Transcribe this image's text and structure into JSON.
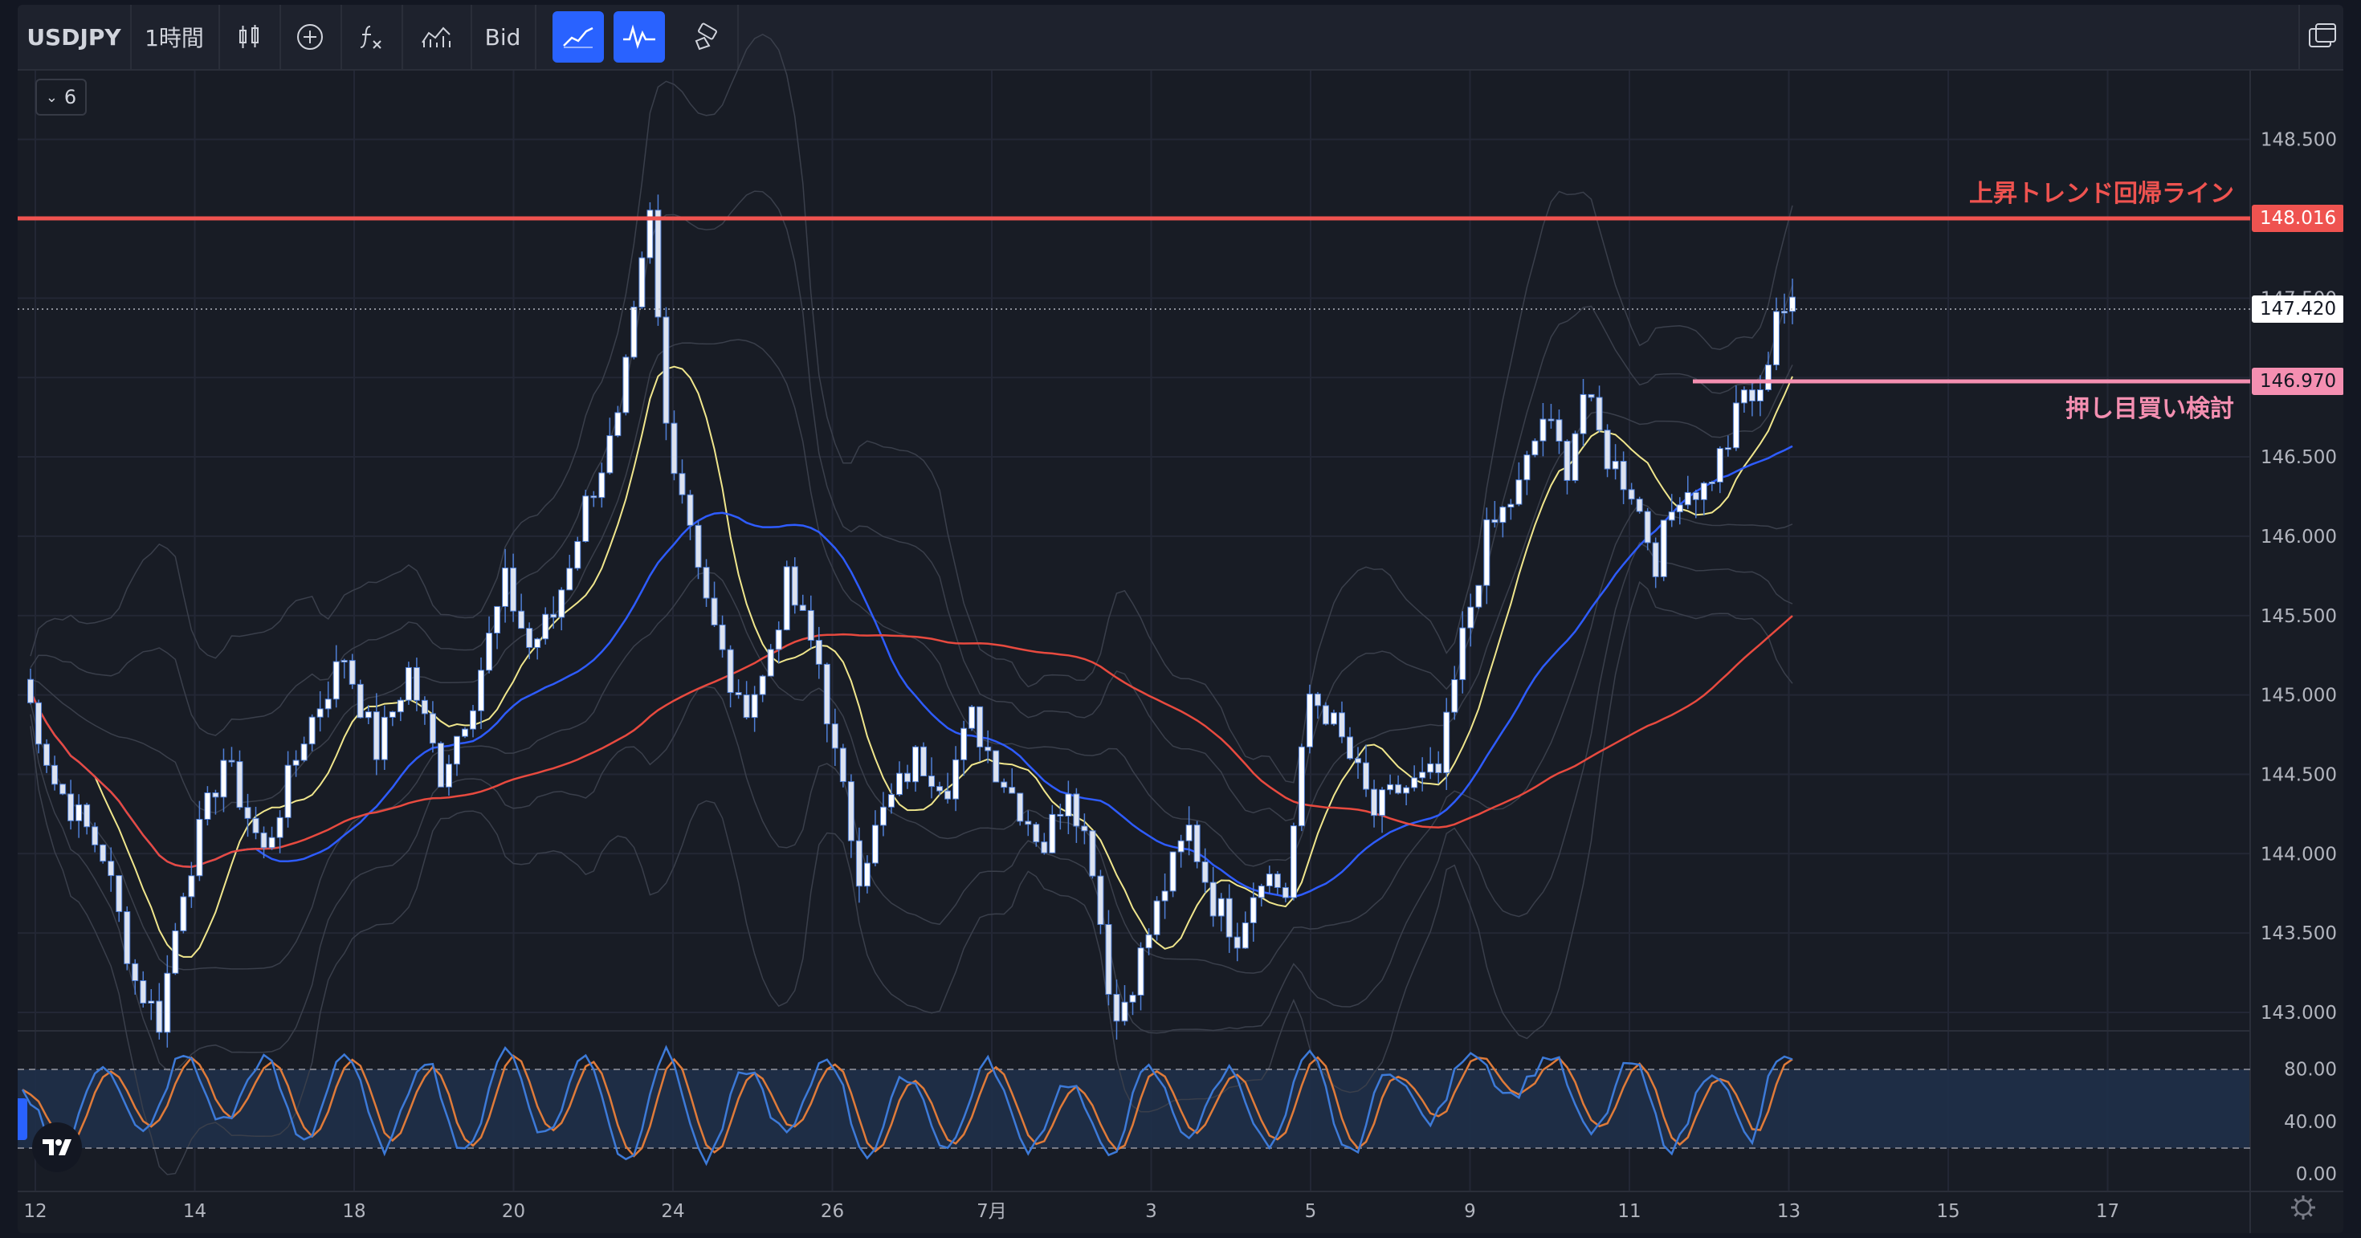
{
  "toolbar": {
    "symbol": "USDJPY",
    "interval": "1時間",
    "price_type": "Bid",
    "icons": [
      "candles-icon",
      "add-compare-icon",
      "indicators-fx-icon",
      "indicator-templates-icon",
      "trend-line-icon",
      "oscillator-icon",
      "brush-icon",
      "layout-icon"
    ]
  },
  "collapse": {
    "count": "6"
  },
  "colors": {
    "bg": "#181c25",
    "candle": "#ffffff",
    "candle_edge": "#4f7fd6",
    "ma_short": "#f0e68c",
    "ma_mid": "#2e5cff",
    "ma_long": "#e84a3f",
    "resistance": "#ef5350",
    "support": "#f48fb1",
    "stoch_k": "#3d7ad8",
    "stoch_d": "#e07b39"
  },
  "annotations": {
    "resistance_label": "上昇トレンド回帰ライン",
    "support_label": "押し目買い検討"
  },
  "price_tags": {
    "resistance": "148.016",
    "current": "147.420",
    "support": "146.970"
  },
  "chart_data": {
    "type": "candlestick",
    "symbol": "USDJPY",
    "interval": "1時間",
    "y_axis": {
      "range": [
        142.9,
        148.75
      ],
      "ticks": [
        "148.500",
        "148.000",
        "147.500",
        "147.000",
        "146.500",
        "146.000",
        "145.500",
        "145.000",
        "144.500",
        "144.000",
        "143.500",
        "143.000"
      ]
    },
    "x_axis": {
      "ticks": [
        "12",
        "14",
        "18",
        "20",
        "24",
        "26",
        "7月",
        "3",
        "5",
        "9",
        "11",
        "13",
        "15",
        "17"
      ]
    },
    "close_path": [
      [
        0,
        145.1
      ],
      [
        4,
        144.45
      ],
      [
        10,
        144.0
      ],
      [
        14,
        143.2
      ],
      [
        17,
        142.95
      ],
      [
        20,
        143.8
      ],
      [
        25,
        144.6
      ],
      [
        30,
        144.0
      ],
      [
        35,
        144.75
      ],
      [
        40,
        145.25
      ],
      [
        44,
        144.65
      ],
      [
        48,
        145.15
      ],
      [
        52,
        144.5
      ],
      [
        56,
        145.0
      ],
      [
        60,
        145.7
      ],
      [
        63,
        145.3
      ],
      [
        66,
        145.5
      ],
      [
        70,
        146.2
      ],
      [
        74,
        146.7
      ],
      [
        78,
        148.0
      ],
      [
        80,
        146.7
      ],
      [
        83,
        146.1
      ],
      [
        86,
        145.4
      ],
      [
        89,
        144.9
      ],
      [
        92,
        145.1
      ],
      [
        95,
        145.7
      ],
      [
        99,
        145.2
      ],
      [
        101,
        144.6
      ],
      [
        104,
        143.9
      ],
      [
        107,
        144.25
      ],
      [
        111,
        144.6
      ],
      [
        115,
        144.45
      ],
      [
        118,
        144.85
      ],
      [
        121,
        144.55
      ],
      [
        124,
        144.3
      ],
      [
        127,
        144.05
      ],
      [
        130,
        144.45
      ],
      [
        133,
        143.95
      ],
      [
        135,
        143.2
      ],
      [
        136,
        142.95
      ],
      [
        139,
        143.35
      ],
      [
        142,
        143.8
      ],
      [
        145,
        144.15
      ],
      [
        148,
        143.7
      ],
      [
        151,
        143.5
      ],
      [
        154,
        143.9
      ],
      [
        157,
        143.75
      ],
      [
        160,
        145.0
      ],
      [
        162,
        144.9
      ],
      [
        165,
        144.6
      ],
      [
        168,
        144.25
      ],
      [
        171,
        144.4
      ],
      [
        174,
        144.45
      ],
      [
        176,
        144.5
      ],
      [
        179,
        145.35
      ],
      [
        182,
        146.0
      ],
      [
        186,
        146.3
      ],
      [
        189,
        146.75
      ],
      [
        192,
        146.45
      ],
      [
        194,
        146.9
      ],
      [
        197,
        146.5
      ],
      [
        200,
        146.3
      ],
      [
        203,
        145.85
      ],
      [
        206,
        146.3
      ],
      [
        209,
        146.3
      ],
      [
        212,
        146.6
      ],
      [
        214,
        146.9
      ],
      [
        216,
        146.85
      ],
      [
        218,
        147.45
      ],
      [
        220,
        147.42
      ]
    ],
    "stochastic": {
      "ticks": [
        "80.00",
        "40.00",
        "0.00"
      ],
      "overbought": 80,
      "oversold": 20,
      "k_path": [
        [
          0,
          60
        ],
        [
          5,
          20
        ],
        [
          10,
          85
        ],
        [
          15,
          30
        ],
        [
          20,
          90
        ],
        [
          25,
          40
        ],
        [
          30,
          88
        ],
        [
          35,
          25
        ],
        [
          40,
          92
        ],
        [
          45,
          20
        ],
        [
          50,
          88
        ],
        [
          55,
          15
        ],
        [
          60,
          95
        ],
        [
          65,
          30
        ],
        [
          70,
          90
        ],
        [
          75,
          10
        ],
        [
          80,
          92
        ],
        [
          85,
          10
        ],
        [
          90,
          80
        ],
        [
          95,
          30
        ],
        [
          100,
          90
        ],
        [
          105,
          15
        ],
        [
          110,
          75
        ],
        [
          115,
          20
        ],
        [
          120,
          85
        ],
        [
          125,
          20
        ],
        [
          130,
          70
        ],
        [
          135,
          15
        ],
        [
          140,
          80
        ],
        [
          145,
          30
        ],
        [
          150,
          80
        ],
        [
          155,
          20
        ],
        [
          160,
          90
        ],
        [
          165,
          15
        ],
        [
          170,
          80
        ],
        [
          175,
          40
        ],
        [
          180,
          95
        ],
        [
          185,
          60
        ],
        [
          190,
          90
        ],
        [
          195,
          30
        ],
        [
          200,
          85
        ],
        [
          205,
          20
        ],
        [
          210,
          80
        ],
        [
          215,
          25
        ],
        [
          218,
          88
        ],
        [
          220,
          85
        ]
      ]
    }
  },
  "misc": {
    "settings_icon": "gear-icon",
    "logo": "tradingview-logo"
  }
}
